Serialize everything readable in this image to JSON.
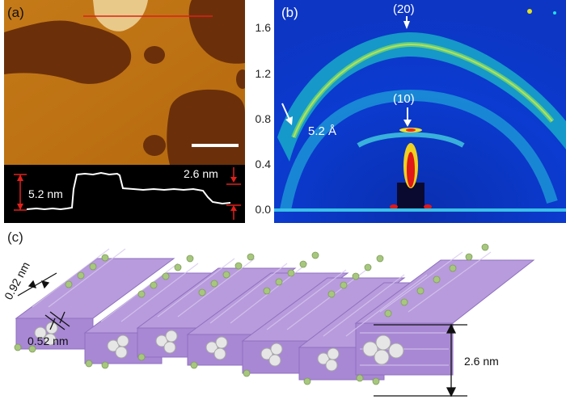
{
  "panels": {
    "a": {
      "label": "(a)",
      "profile_step_height": "5.2 nm",
      "profile_half_step": "2.6 nm"
    },
    "b": {
      "label": "(b)",
      "y_ticks": [
        "1.6",
        "1.2",
        "0.8",
        "0.4",
        "0.0"
      ],
      "peak_20_label": "(20)",
      "peak_10_label": "(10)",
      "ring_label": "5.2 Å"
    },
    "c": {
      "label": "(c)",
      "spacing_top": "0.92 nm",
      "spacing_bottom": "0.52 nm",
      "layer_height": "2.6 nm"
    }
  },
  "colors": {
    "afm_terrace": "#b86a10",
    "afm_holes": "#6b300a",
    "afm_high": "#e8c98a",
    "scan_line": "#e0201a",
    "rods": "#b89bdc",
    "beads": "#a7c77e",
    "cores": "#e6e6e6"
  }
}
